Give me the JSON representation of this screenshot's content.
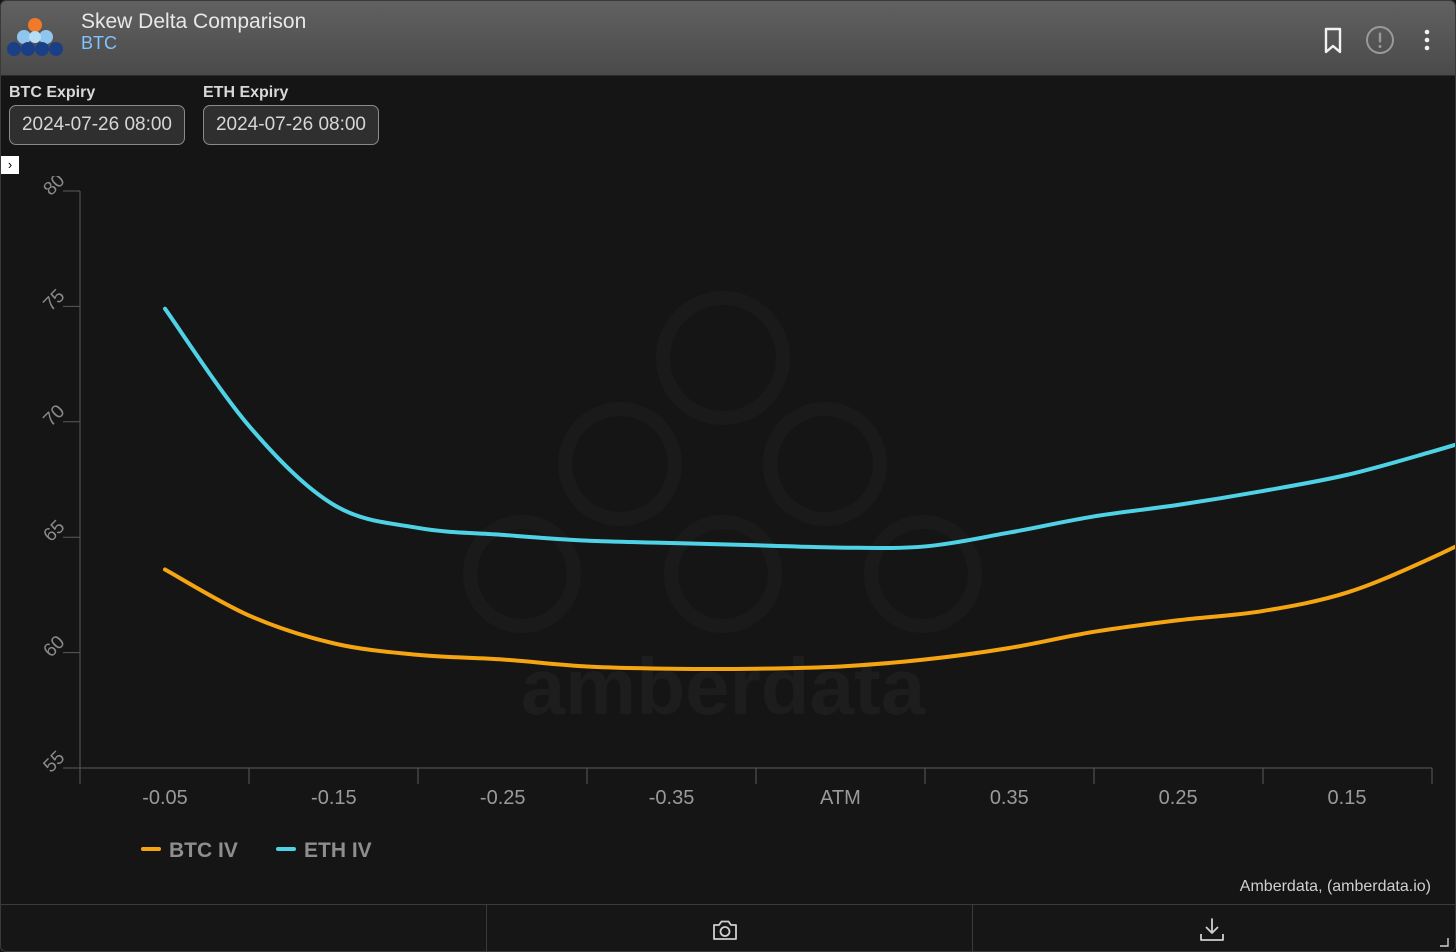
{
  "header": {
    "title": "Skew Delta Comparison",
    "subtitle": "BTC",
    "icons": [
      "bookmark-icon",
      "info-alert-icon",
      "more-vertical-icon"
    ]
  },
  "controls": {
    "btc_expiry_label": "BTC Expiry",
    "btc_expiry_value": "2024-07-26 08:00",
    "eth_expiry_label": "ETH Expiry",
    "eth_expiry_value": "2024-07-26 08:00"
  },
  "watermark": "amberdata",
  "credit": "Amberdata, (amberdata.io)",
  "bottom_bar": {
    "icons": [
      "camera-icon",
      "download-icon"
    ]
  },
  "colors": {
    "btc": "#f5a511",
    "eth": "#4fd2e6",
    "background": "#151515"
  },
  "chart_data": {
    "type": "line",
    "title": "",
    "xlabel": "",
    "ylabel": "",
    "categories": [
      "-0.05",
      "-0.15",
      "-0.25",
      "-0.35",
      "ATM",
      "0.35",
      "0.25",
      "0.15"
    ],
    "ylim": [
      55,
      80
    ],
    "yticks": [
      55,
      60,
      65,
      70,
      75,
      80
    ],
    "grid": false,
    "legend_position": "bottom-left",
    "series": [
      {
        "name": "BTC IV",
        "color": "#f5a511",
        "x": [
          -0.05,
          -0.1,
          -0.15,
          -0.2,
          -0.25,
          -0.3,
          -0.35,
          -0.4,
          -0.45,
          -0.5,
          0.45,
          0.4,
          0.35,
          0.3,
          0.25,
          0.2,
          0.15
        ],
        "values": [
          63.6,
          61.6,
          60.4,
          59.9,
          59.7,
          59.4,
          59.3,
          59.3,
          59.4,
          59.7,
          60.2,
          60.9,
          61.4,
          61.8,
          62.6,
          64.1,
          65.9
        ]
      },
      {
        "name": "ETH IV",
        "color": "#4fd2e6",
        "x": [
          -0.05,
          -0.1,
          -0.15,
          -0.2,
          -0.25,
          -0.3,
          -0.35,
          -0.4,
          -0.45,
          -0.5,
          0.45,
          0.4,
          0.35,
          0.3,
          0.25,
          0.2,
          0.15
        ],
        "values": [
          74.9,
          69.8,
          66.4,
          65.4,
          65.1,
          64.85,
          64.75,
          64.65,
          64.55,
          64.6,
          65.2,
          65.9,
          66.4,
          67.0,
          67.7,
          68.7,
          69.8
        ]
      }
    ]
  }
}
